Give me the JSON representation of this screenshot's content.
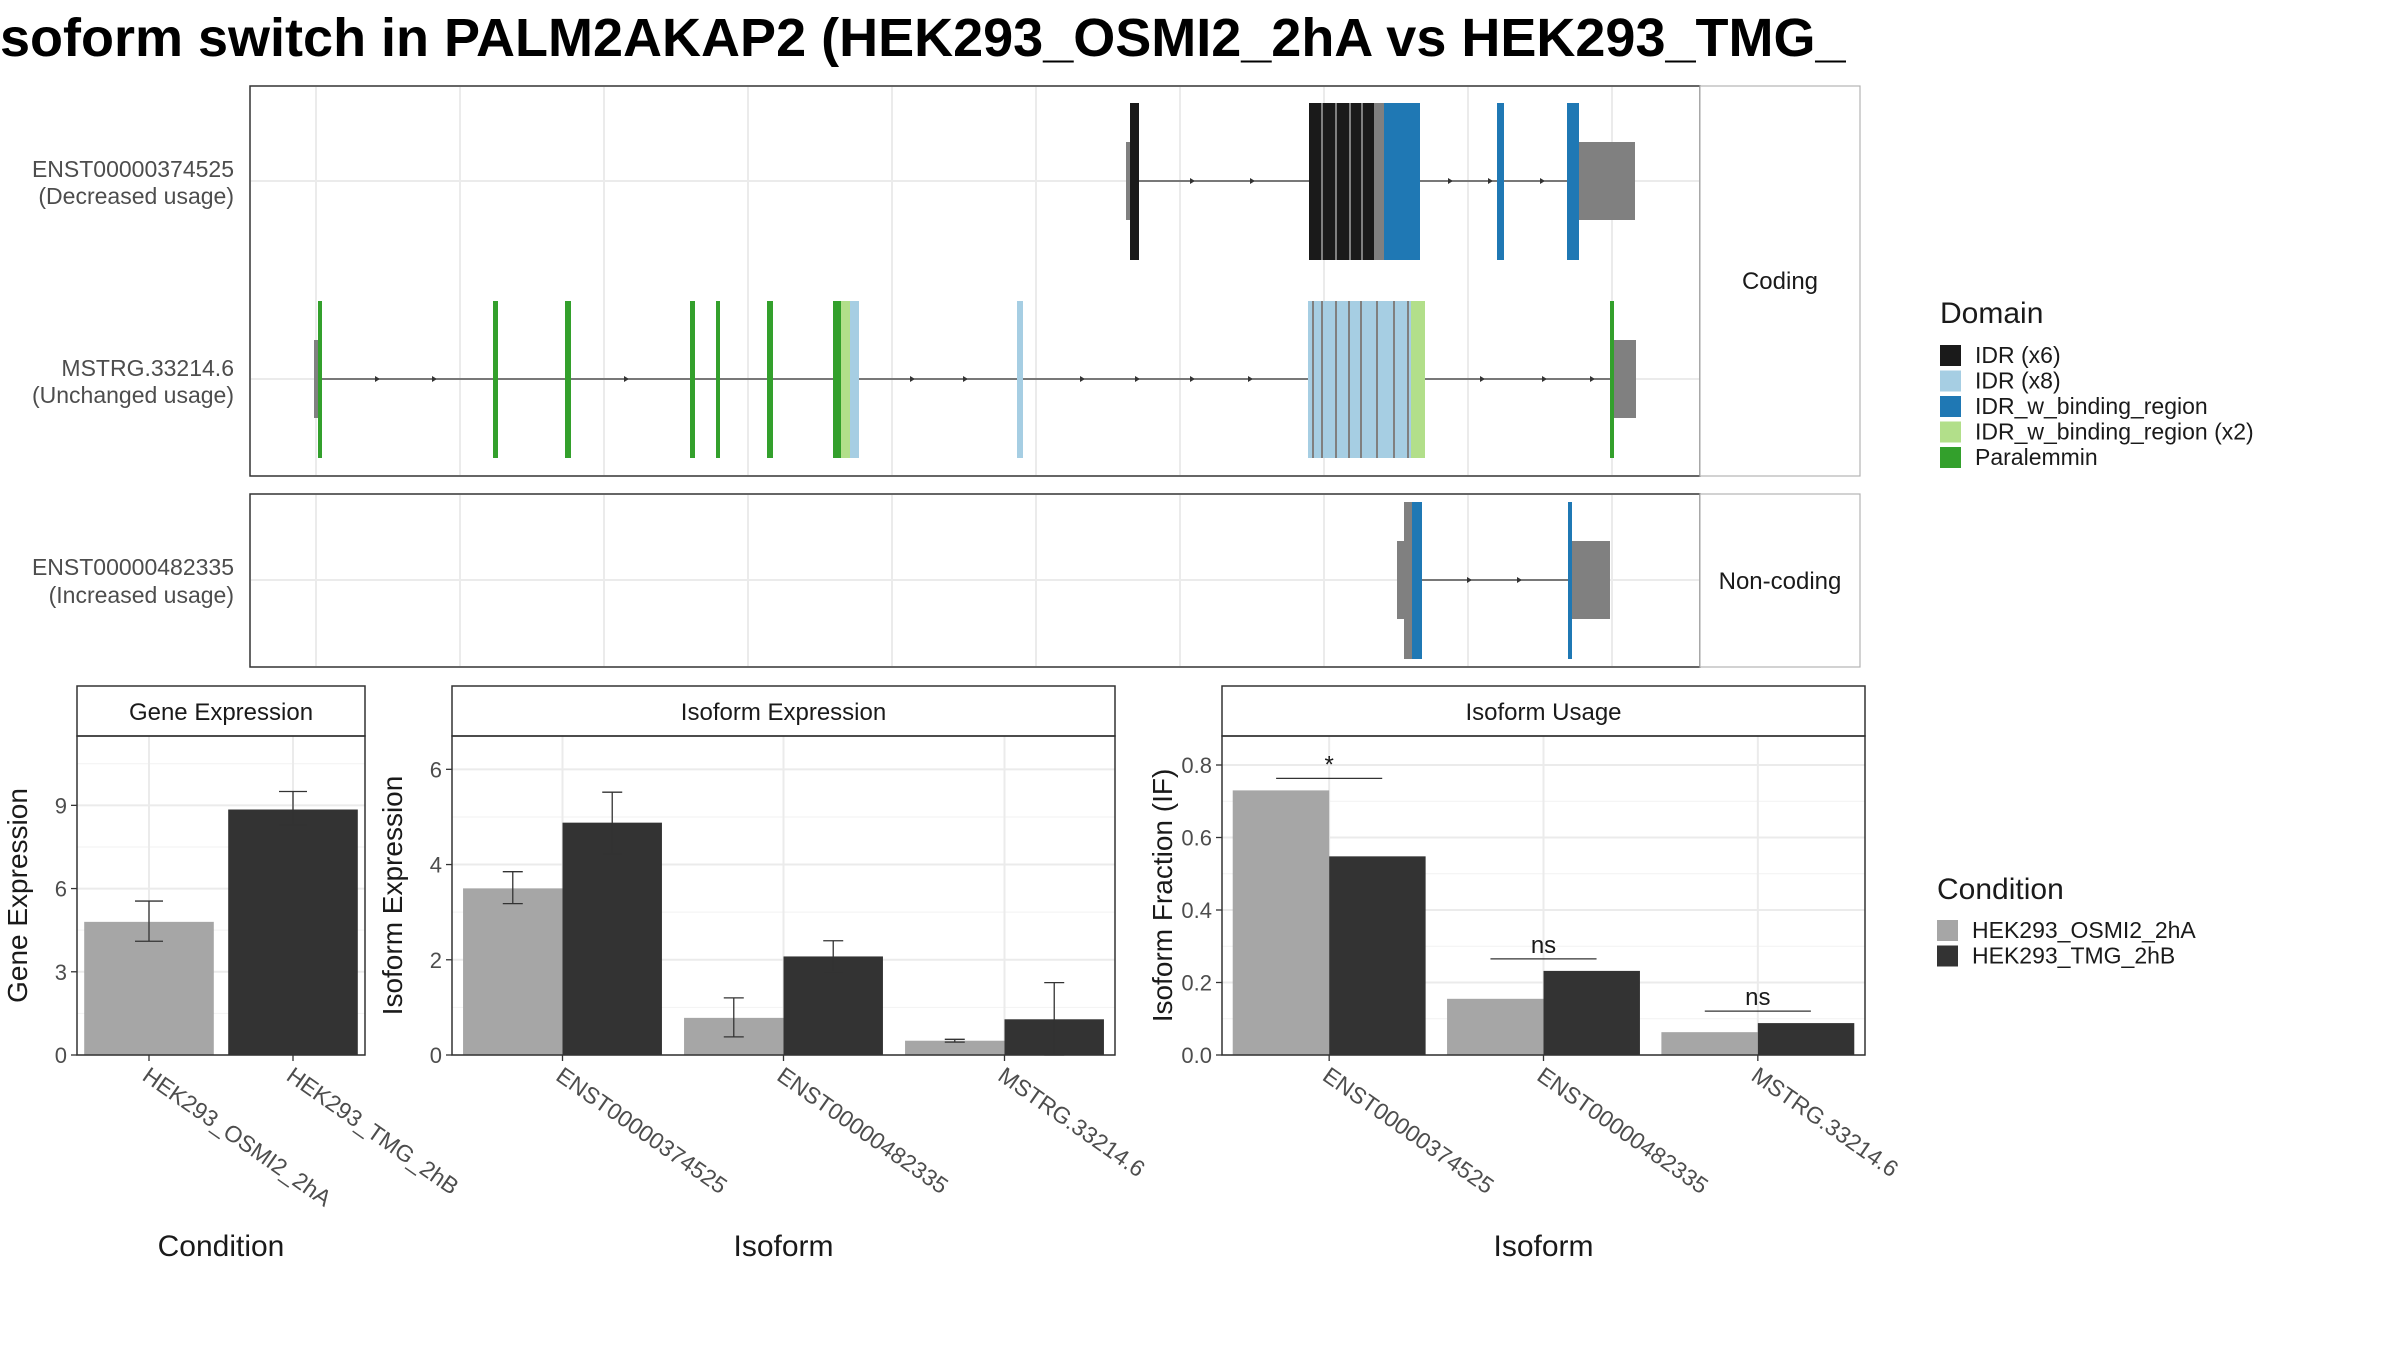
{
  "title": "soform switch in PALM2AKAP2 (HEK293_OSMI2_2hA vs HEK293_TMG_",
  "structure": {
    "coding_facet": "Coding",
    "noncoding_facet": "Non-coding",
    "isoforms": [
      {
        "id": "ENST00000374525",
        "status": "(Decreased usage)",
        "facet": "Coding"
      },
      {
        "id": "MSTRG.33214.6",
        "status": "(Unchanged usage)",
        "facet": "Coding"
      },
      {
        "id": "ENST00000482335",
        "status": "(Increased usage)",
        "facet": "Non-coding"
      }
    ],
    "domain_legend": {
      "title": "Domain",
      "items": [
        {
          "label": "IDR (x6)",
          "color": "#1a1a1a"
        },
        {
          "label": "IDR (x8)",
          "color": "#a6cee3"
        },
        {
          "label": "IDR_w_binding_region",
          "color": "#1f78b4"
        },
        {
          "label": "IDR_w_binding_region (x2)",
          "color": "#b2df8a"
        },
        {
          "label": "Paralemmin",
          "color": "#33a02c"
        }
      ]
    }
  },
  "condition_legend": {
    "title": "Condition",
    "items": [
      {
        "label": "HEK293_OSMI2_2hA",
        "color": "#a6a6a6"
      },
      {
        "label": "HEK293_TMG_2hB",
        "color": "#333333"
      }
    ]
  },
  "chart_data": [
    {
      "type": "bar",
      "title": "Gene Expression",
      "xlabel": "Condition",
      "ylabel": "Gene Expression",
      "ylim": [
        0,
        11.5
      ],
      "yticks": [
        0,
        3,
        6,
        9
      ],
      "categories": [
        "HEK293_OSMI2_2hA",
        "HEK293_TMG_2hB"
      ],
      "values": [
        4.8,
        8.85
      ],
      "error_low": [
        4.1,
        8.3
      ],
      "error_high": [
        5.55,
        9.5
      ],
      "colors": [
        "#a6a6a6",
        "#333333"
      ]
    },
    {
      "type": "bar",
      "title": "Isoform Expression",
      "xlabel": "Isoform",
      "ylabel": "Isoform Expression",
      "ylim": [
        0,
        6.7
      ],
      "yticks": [
        0,
        2,
        4,
        6
      ],
      "categories": [
        "ENST00000374525",
        "ENST00000482335",
        "MSTRG.33214.6"
      ],
      "series": [
        {
          "name": "HEK293_OSMI2_2hA",
          "values": [
            3.5,
            0.78,
            0.3
          ],
          "error_low": [
            3.18,
            0.38,
            0.27
          ],
          "error_high": [
            3.85,
            1.2,
            0.33
          ]
        },
        {
          "name": "HEK293_TMG_2hB",
          "values": [
            4.88,
            2.07,
            0.75
          ],
          "error_low": [
            4.22,
            1.75,
            0.0
          ],
          "error_high": [
            5.52,
            2.4,
            1.52
          ]
        }
      ]
    },
    {
      "type": "bar",
      "title": "Isoform Usage",
      "xlabel": "Isoform",
      "ylabel": "Isoform Fraction (IF)",
      "ylim": [
        0,
        0.88
      ],
      "yticks": [
        0.0,
        0.2,
        0.4,
        0.6,
        0.8
      ],
      "categories": [
        "ENST00000374525",
        "ENST00000482335",
        "MSTRG.33214.6"
      ],
      "series": [
        {
          "name": "HEK293_OSMI2_2hA",
          "values": [
            0.73,
            0.155,
            0.063
          ]
        },
        {
          "name": "HEK293_TMG_2hB",
          "values": [
            0.548,
            0.232,
            0.088
          ]
        }
      ],
      "significance": [
        "*",
        "ns",
        "ns"
      ]
    }
  ]
}
